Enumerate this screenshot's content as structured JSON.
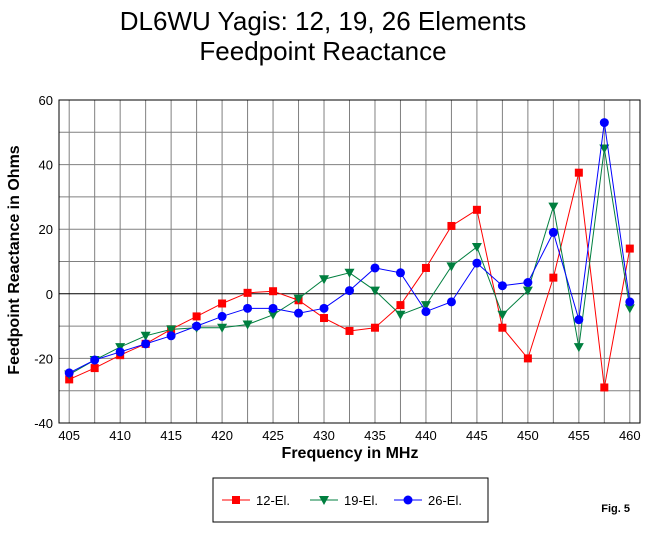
{
  "chart_data": {
    "type": "line",
    "title": "DL6WU Yagis:  12, 19, 26 Elements",
    "subtitle": "Feedpoint Reactance",
    "xlabel": "Frequency in MHz",
    "ylabel": "Feedpoint Reactance in Ohms",
    "xlim": [
      404,
      461
    ],
    "ylim": [
      -40,
      60
    ],
    "x_ticks": [
      405,
      410,
      415,
      420,
      425,
      430,
      435,
      440,
      445,
      450,
      455,
      460
    ],
    "y_ticks": [
      -40,
      -20,
      0,
      20,
      40,
      60
    ],
    "grid": true,
    "legend_position": "bottom",
    "x": [
      405,
      407.5,
      410,
      412.5,
      415,
      417.5,
      420,
      422.5,
      425,
      427.5,
      430,
      432.5,
      435,
      437.5,
      440,
      442.5,
      445,
      447.5,
      450,
      452.5,
      455,
      457.5,
      460
    ],
    "series": [
      {
        "name": "12-El.",
        "color": "#ff0000",
        "marker": "square",
        "values": [
          -26.5,
          -23,
          -19,
          -15.5,
          -11,
          -7,
          -3,
          0.3,
          0.8,
          -2,
          -7.5,
          -11.5,
          -10.5,
          -3.5,
          8,
          21,
          26,
          -10.5,
          -20,
          5,
          37.5,
          -29,
          14
        ]
      },
      {
        "name": "19-El.",
        "color": "#007f3f",
        "marker": "triangle-down",
        "values": [
          -25,
          -20.5,
          -16.5,
          -13,
          -11,
          -10.5,
          -10.5,
          -9.5,
          -6.5,
          -1.5,
          4.5,
          6.5,
          1,
          -6.5,
          -3.5,
          8.5,
          14.5,
          -6.5,
          1,
          27,
          -16.5,
          45,
          -4.5
        ]
      },
      {
        "name": "26-El.",
        "color": "#0000ff",
        "marker": "circle",
        "values": [
          -24.5,
          -20.5,
          -18,
          -15.5,
          -13,
          -10,
          -7,
          -4.5,
          -4.5,
          -6,
          -4.5,
          1,
          8,
          6.5,
          -5.5,
          -2.5,
          9.5,
          2.5,
          3.5,
          19,
          -8,
          53,
          -2.5
        ]
      }
    ],
    "figure_label": "Fig. 5"
  }
}
